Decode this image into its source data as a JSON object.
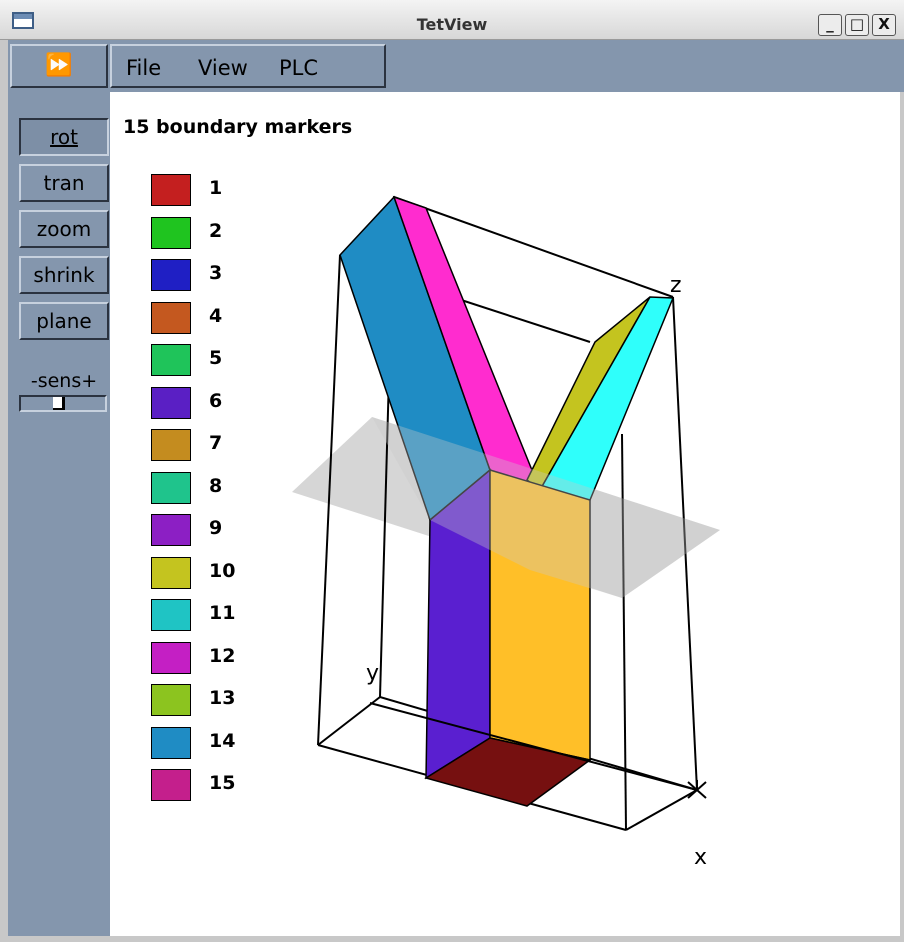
{
  "window": {
    "title": "TetView",
    "minimize": "_",
    "maximize": "□",
    "close": "X"
  },
  "toolbar": {
    "play_glyph": "⏩",
    "menus": [
      "File",
      "View",
      "PLC"
    ]
  },
  "controls": {
    "buttons": [
      {
        "label": "rot",
        "active": true
      },
      {
        "label": "tran",
        "active": false
      },
      {
        "label": "zoom",
        "active": false
      },
      {
        "label": "shrink",
        "active": false
      },
      {
        "label": "plane",
        "active": false
      }
    ],
    "sensitivity_label": "-sens+",
    "sensitivity_level": 0.45
  },
  "canvas": {
    "heading": "15 boundary markers",
    "legend": [
      {
        "label": "1",
        "color": "#c41f1f"
      },
      {
        "label": "2",
        "color": "#1fc41f"
      },
      {
        "label": "3",
        "color": "#1f1fc4"
      },
      {
        "label": "4",
        "color": "#c4581f"
      },
      {
        "label": "5",
        "color": "#1fc45a"
      },
      {
        "label": "6",
        "color": "#5a1fc4"
      },
      {
        "label": "7",
        "color": "#c48c1f"
      },
      {
        "label": "8",
        "color": "#1fc48c"
      },
      {
        "label": "9",
        "color": "#8c1fc4"
      },
      {
        "label": "10",
        "color": "#c4c41f"
      },
      {
        "label": "11",
        "color": "#1fc4c4"
      },
      {
        "label": "12",
        "color": "#c41fc4"
      },
      {
        "label": "13",
        "color": "#8cc41f"
      },
      {
        "label": "14",
        "color": "#1f8cc4"
      },
      {
        "label": "15",
        "color": "#c41f8c"
      }
    ],
    "axes": {
      "x": "x",
      "y": "y",
      "z": "z"
    }
  }
}
